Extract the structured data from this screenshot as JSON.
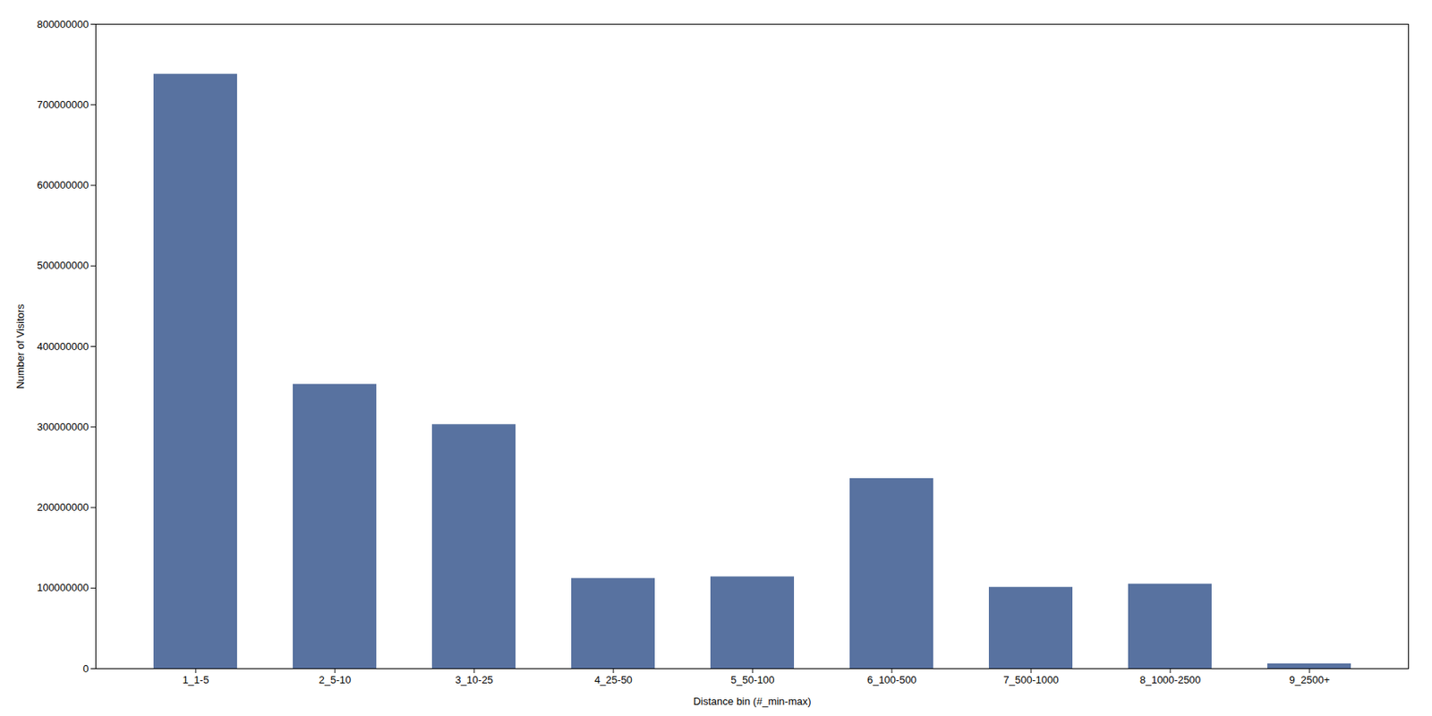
{
  "chart_data": {
    "type": "bar",
    "categories": [
      "1_1-5",
      "2_5-10",
      "3_10-25",
      "4_25-50",
      "5_50-100",
      "6_100-500",
      "7_500-1000",
      "8_1000-2500",
      "9_2500+"
    ],
    "values": [
      738000000,
      353000000,
      303000000,
      112000000,
      114000000,
      236000000,
      101000000,
      105000000,
      6000000
    ],
    "color": "#5872a0",
    "xlabel": "Distance bin (#_min-max)",
    "ylabel": "Number of Visitors",
    "ylim": [
      0,
      800000000
    ],
    "yticks": [
      0,
      100000000,
      200000000,
      300000000,
      400000000,
      500000000,
      600000000,
      700000000,
      800000000
    ],
    "grid": false
  }
}
